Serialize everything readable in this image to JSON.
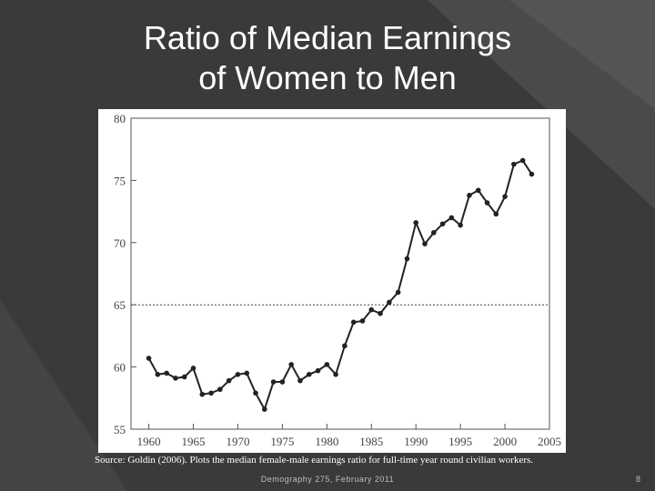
{
  "slide": {
    "title_line1": "Ratio of Median Earnings",
    "title_line2": "of Women to Men",
    "source_note": "Source: Goldin (2006). Plots the median  female-male earnings ratio for full-time year round civilian workers.",
    "footer": "Demography 275, February 2011",
    "page_number": "8"
  },
  "chart_data": {
    "type": "line",
    "title": "",
    "xlabel": "",
    "ylabel": "",
    "xlim": [
      1958,
      2005
    ],
    "ylim": [
      55,
      80
    ],
    "x_ticks": [
      1960,
      1965,
      1970,
      1975,
      1980,
      1985,
      1990,
      1995,
      2000,
      2005
    ],
    "y_ticks": [
      55,
      60,
      65,
      70,
      75,
      80
    ],
    "reference_line": 65,
    "grid": false,
    "series": [
      {
        "x": [
          1960,
          1961,
          1962,
          1963,
          1964,
          1965,
          1966,
          1967,
          1968,
          1969,
          1970,
          1971,
          1972,
          1973,
          1974,
          1975,
          1976,
          1977,
          1978,
          1979,
          1980,
          1981,
          1982,
          1983,
          1984,
          1985,
          1986,
          1987,
          1988,
          1989,
          1990,
          1991,
          1992,
          1993,
          1994,
          1995,
          1996,
          1997,
          1998,
          1999,
          2000,
          2001,
          2002,
          2003
        ],
        "values": [
          60.7,
          59.4,
          59.5,
          59.1,
          59.2,
          59.9,
          57.8,
          57.9,
          58.2,
          58.9,
          59.4,
          59.5,
          57.9,
          56.6,
          58.8,
          58.8,
          60.2,
          58.9,
          59.4,
          59.7,
          60.2,
          59.4,
          61.7,
          63.6,
          63.7,
          64.6,
          64.3,
          65.2,
          66.0,
          68.7,
          71.6,
          69.9,
          70.8,
          71.5,
          72.0,
          71.4,
          73.8,
          74.2,
          73.2,
          72.3,
          73.7,
          76.3,
          76.6,
          75.5
        ]
      }
    ],
    "line_color": "#222222"
  }
}
